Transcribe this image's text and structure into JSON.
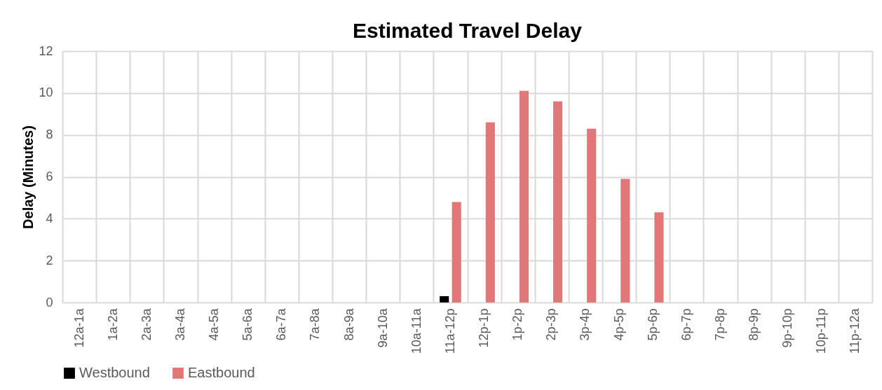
{
  "chart_data": {
    "type": "bar",
    "title": "Estimated Travel Delay",
    "ylabel": "Delay (Minutes)",
    "categories": [
      "12a-1a",
      "1a-2a",
      "2a-3a",
      "3a-4a",
      "4a-5a",
      "5a-6a",
      "6a-7a",
      "7a-8a",
      "8a-9a",
      "9a-10a",
      "10a-11a",
      "11a-12p",
      "12p-1p",
      "1p-2p",
      "2p-3p",
      "3p-4p",
      "4p-5p",
      "5p-6p",
      "6p-7p",
      "7p-8p",
      "8p-9p",
      "9p-10p",
      "10p-11p",
      "11p-12a"
    ],
    "series": [
      {
        "name": "Westbound",
        "color": "#000000",
        "values": [
          null,
          null,
          null,
          null,
          null,
          null,
          null,
          null,
          null,
          null,
          null,
          0.3,
          null,
          null,
          null,
          null,
          null,
          null,
          null,
          null,
          null,
          null,
          null,
          null
        ]
      },
      {
        "name": "Eastbound",
        "color": "#e07878",
        "values": [
          null,
          null,
          null,
          null,
          null,
          null,
          null,
          null,
          null,
          null,
          null,
          4.8,
          8.6,
          10.1,
          9.6,
          8.3,
          5.9,
          4.3,
          null,
          null,
          null,
          null,
          null,
          null
        ]
      }
    ],
    "ylim": [
      0,
      12
    ],
    "yticks": [
      0,
      2,
      4,
      6,
      8,
      10,
      12
    ],
    "grid": true,
    "legend": "bottom"
  }
}
